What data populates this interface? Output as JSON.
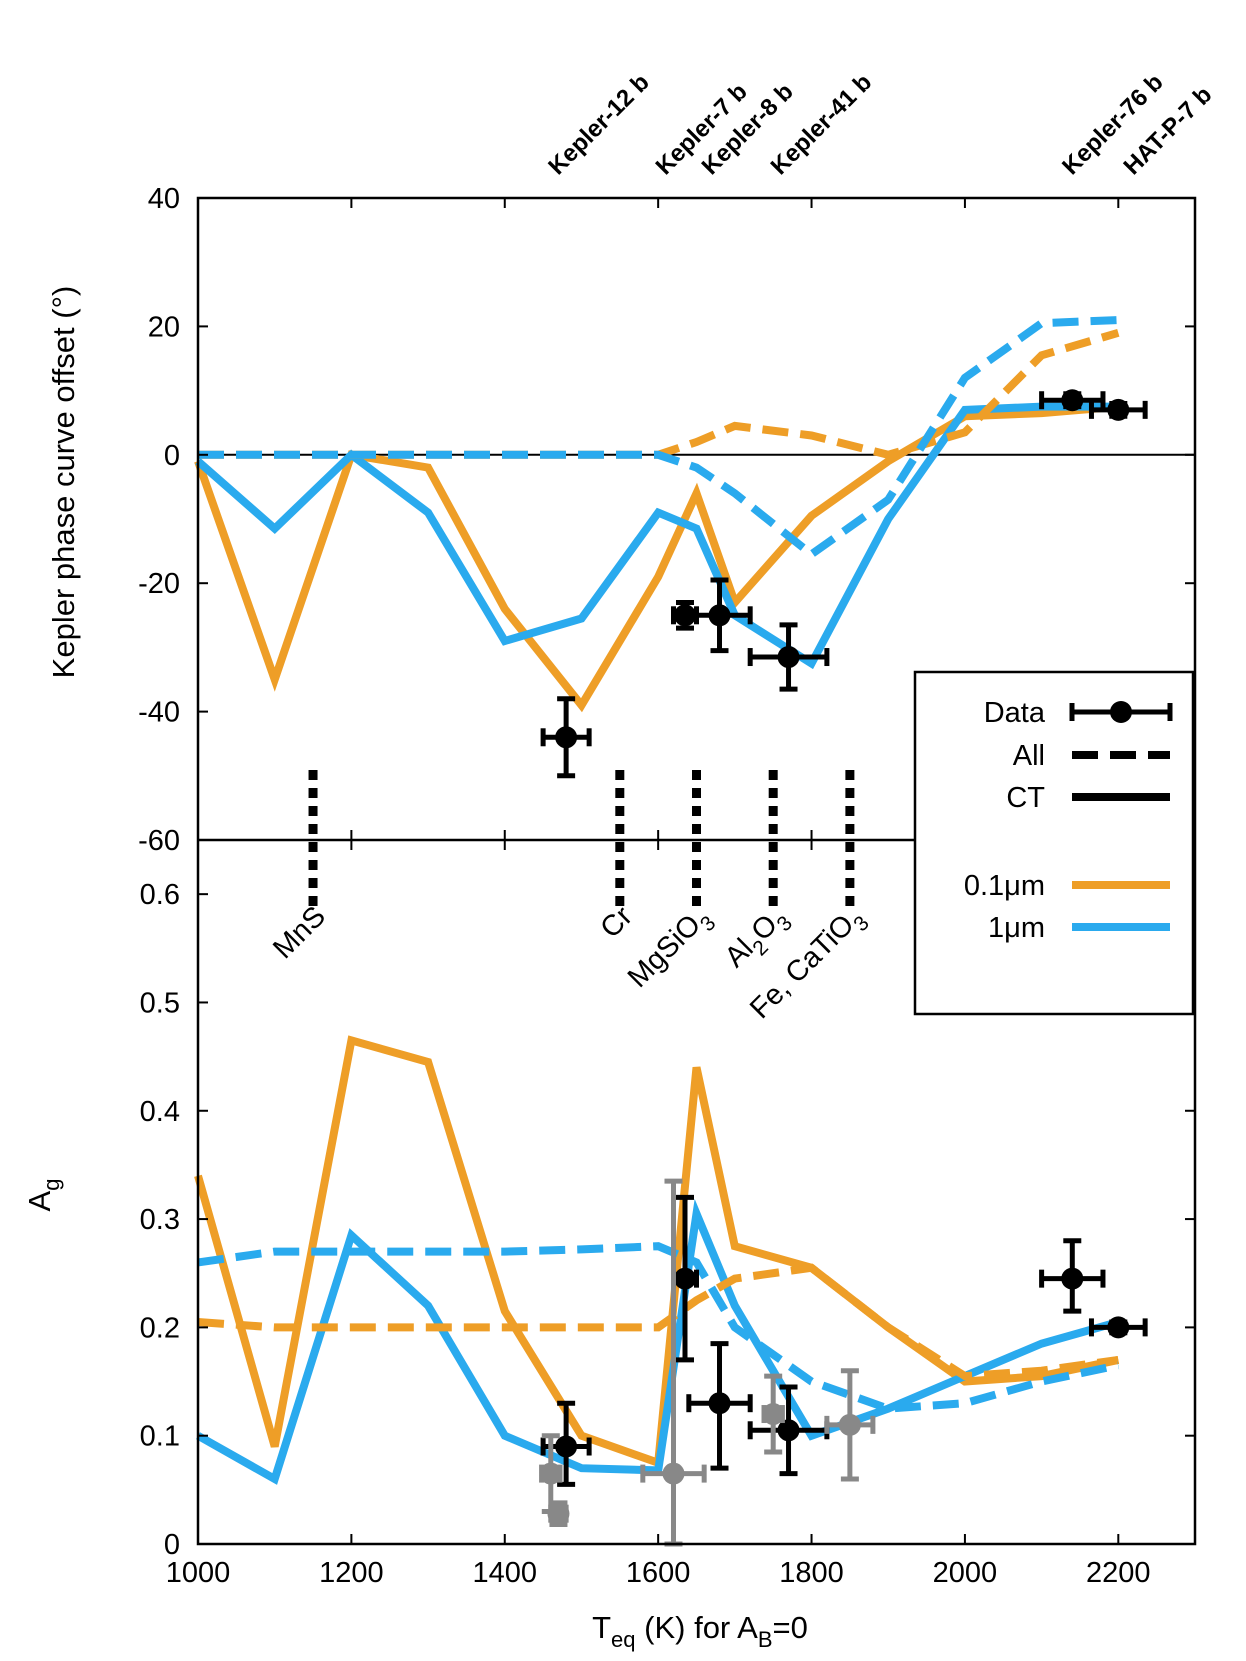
{
  "chart_data": [
    {
      "type": "line",
      "panel": "top",
      "ylabel": "Kepler phase curve offset (°)",
      "xlim": [
        1000,
        2300
      ],
      "ylim": [
        -60,
        40
      ],
      "grid": false,
      "zero_line": true,
      "yticks": [
        "40",
        "20",
        "0",
        "-20",
        "-40",
        "-60"
      ],
      "top_labels": [
        "Kepler-12 b",
        "Kepler-7 b",
        "Kepler-8 b",
        "Kepler-41 b",
        "Kepler-76 b",
        "HAT-P-7 b"
      ],
      "top_label_x": [
        1480,
        1620,
        1680,
        1770,
        2150,
        2230
      ],
      "condensation_x": [
        1150,
        1550,
        1650,
        1750,
        1850
      ],
      "series": [
        {
          "size": "0.1μm",
          "model": "CT",
          "color": "#EE9E27",
          "dash": false,
          "x": [
            1000,
            1100,
            1200,
            1300,
            1400,
            1500,
            1600,
            1650,
            1700,
            1800,
            1900,
            2000,
            2100,
            2200
          ],
          "y": [
            -1,
            -35,
            0,
            -2,
            -24,
            -39,
            -19,
            -6,
            -23,
            -9.5,
            -1,
            6,
            6.5,
            7.5
          ]
        },
        {
          "size": "1μm",
          "model": "CT",
          "color": "#2AAAEE",
          "dash": false,
          "x": [
            1000,
            1100,
            1200,
            1300,
            1400,
            1500,
            1600,
            1650,
            1700,
            1800,
            1900,
            2000,
            2100,
            2200
          ],
          "y": [
            -1,
            -11.5,
            0,
            -9,
            -29,
            -25.5,
            -9,
            -11.5,
            -25,
            -32.5,
            -10,
            7,
            7.5,
            7.5
          ]
        },
        {
          "size": "0.1μm",
          "model": "All",
          "color": "#EE9E27",
          "dash": true,
          "x": [
            1000,
            1100,
            1200,
            1300,
            1400,
            1500,
            1600,
            1650,
            1700,
            1800,
            1900,
            2000,
            2100,
            2200
          ],
          "y": [
            0,
            0,
            0,
            0,
            0,
            0,
            0,
            2,
            4.5,
            3,
            0,
            3.5,
            15.5,
            19
          ]
        },
        {
          "size": "1μm",
          "model": "All",
          "color": "#2AAAEE",
          "dash": true,
          "x": [
            1000,
            1100,
            1200,
            1300,
            1400,
            1500,
            1600,
            1650,
            1700,
            1800,
            1900,
            2000,
            2100,
            2200
          ],
          "y": [
            0,
            0,
            0,
            0,
            0,
            0,
            0,
            -2,
            -6,
            -15.5,
            -7,
            12,
            20.5,
            21
          ]
        }
      ],
      "data_points": [
        {
          "x": 1480,
          "y": -44,
          "xerr": 30,
          "yerr_lo": 6,
          "yerr_hi": 6,
          "color": "#000000"
        },
        {
          "x": 1635,
          "y": -25,
          "xerr": 15,
          "yerr_lo": 2,
          "yerr_hi": 2,
          "color": "#000000"
        },
        {
          "x": 1680,
          "y": -25,
          "xerr": 40,
          "yerr_lo": 5.5,
          "yerr_hi": 5.5,
          "color": "#000000"
        },
        {
          "x": 1770,
          "y": -31.5,
          "xerr": 50,
          "yerr_lo": 5,
          "yerr_hi": 5,
          "color": "#000000"
        },
        {
          "x": 2140,
          "y": 8.5,
          "xerr": 40,
          "yerr_lo": 1,
          "yerr_hi": 1,
          "color": "#000000"
        },
        {
          "x": 2200,
          "y": 7,
          "xerr": 35,
          "yerr_lo": 1,
          "yerr_hi": 1,
          "color": "#000000"
        }
      ]
    },
    {
      "type": "line",
      "panel": "bottom",
      "ylabel": "A",
      "ylabel_sub": "g",
      "xlabel_pre": "T",
      "xlabel_sub": "eq",
      "xlabel_mid": " (K) for A",
      "xlabel_sub2": "B",
      "xlabel_post": "=0",
      "xlim": [
        1000,
        2300
      ],
      "ylim": [
        0,
        0.65
      ],
      "grid": false,
      "xticks": [
        "1000",
        "1200",
        "1400",
        "1600",
        "1800",
        "2000",
        "2200"
      ],
      "yticks": [
        "0",
        "0.1",
        "0.2",
        "0.3",
        "0.4",
        "0.5",
        "0.6"
      ],
      "series": [
        {
          "size": "0.1μm",
          "model": "CT",
          "color": "#EE9E27",
          "dash": false,
          "x": [
            1000,
            1100,
            1200,
            1300,
            1400,
            1500,
            1600,
            1650,
            1700,
            1800,
            1900,
            2000,
            2100,
            2200
          ],
          "y": [
            0.34,
            0.09,
            0.465,
            0.445,
            0.215,
            0.1,
            0.075,
            0.44,
            0.275,
            0.255,
            0.2,
            0.15,
            0.155,
            0.17
          ]
        },
        {
          "size": "1μm",
          "model": "CT",
          "color": "#2AAAEE",
          "dash": false,
          "x": [
            1000,
            1100,
            1200,
            1300,
            1400,
            1500,
            1600,
            1650,
            1700,
            1800,
            1900,
            2000,
            2100,
            2200
          ],
          "y": [
            0.1,
            0.06,
            0.285,
            0.22,
            0.1,
            0.07,
            0.068,
            0.305,
            0.22,
            0.1,
            0.125,
            0.155,
            0.185,
            0.205
          ]
        },
        {
          "size": "0.1μm",
          "model": "All",
          "color": "#EE9E27",
          "dash": true,
          "x": [
            1000,
            1100,
            1200,
            1300,
            1400,
            1500,
            1600,
            1650,
            1700,
            1800,
            1900,
            2000,
            2100,
            2200
          ],
          "y": [
            0.205,
            0.2,
            0.2,
            0.2,
            0.2,
            0.2,
            0.2,
            0.225,
            0.245,
            0.255,
            0.2,
            0.155,
            0.16,
            0.17
          ]
        },
        {
          "size": "1μm",
          "model": "All",
          "color": "#2AAAEE",
          "dash": true,
          "x": [
            1000,
            1100,
            1200,
            1300,
            1400,
            1500,
            1600,
            1650,
            1700,
            1800,
            1900,
            2000,
            2100,
            2200
          ],
          "y": [
            0.26,
            0.27,
            0.27,
            0.27,
            0.27,
            0.272,
            0.275,
            0.26,
            0.2,
            0.15,
            0.125,
            0.13,
            0.15,
            0.165
          ]
        }
      ],
      "data_points": [
        {
          "x": 1480,
          "y": 0.09,
          "xerr": 30,
          "yerr_lo": 0.035,
          "yerr_hi": 0.04,
          "color": "#000000"
        },
        {
          "x": 1635,
          "y": 0.245,
          "xerr": 15,
          "yerr_lo": 0.075,
          "yerr_hi": 0.075,
          "color": "#000000"
        },
        {
          "x": 1680,
          "y": 0.13,
          "xerr": 40,
          "yerr_lo": 0.06,
          "yerr_hi": 0.055,
          "color": "#000000"
        },
        {
          "x": 1770,
          "y": 0.105,
          "xerr": 50,
          "yerr_lo": 0.04,
          "yerr_hi": 0.04,
          "color": "#000000"
        },
        {
          "x": 2140,
          "y": 0.245,
          "xerr": 40,
          "yerr_lo": 0.03,
          "yerr_hi": 0.035,
          "color": "#000000"
        },
        {
          "x": 2200,
          "y": 0.2,
          "xerr": 35,
          "yerr_lo": 0.005,
          "yerr_hi": 0.005,
          "color": "#000000"
        },
        {
          "x": 1460,
          "y": 0.065,
          "xerr": 12,
          "yerr_lo": 0.035,
          "yerr_hi": 0.035,
          "color": "#888888"
        },
        {
          "x": 1470,
          "y": 0.028,
          "xerr": 10,
          "yerr_lo": 0.01,
          "yerr_hi": 0.01,
          "color": "#888888"
        },
        {
          "x": 1620,
          "y": 0.065,
          "xerr": 40,
          "yerr_lo": 0.065,
          "yerr_hi": 0.27,
          "color": "#888888"
        },
        {
          "x": 1750,
          "y": 0.12,
          "xerr": 12,
          "yerr_lo": 0.035,
          "yerr_hi": 0.035,
          "color": "#888888"
        },
        {
          "x": 1850,
          "y": 0.11,
          "xerr": 30,
          "yerr_lo": 0.05,
          "yerr_hi": 0.05,
          "color": "#888888"
        }
      ]
    }
  ],
  "species_labels": [
    {
      "name": "MnS",
      "x": 1150
    },
    {
      "name": "Cr",
      "x": 1550
    },
    {
      "name": "MgSiO",
      "sub": "3",
      "x": 1650
    },
    {
      "name": "Al",
      "sub": "2",
      "mid": "O",
      "sub2": "3",
      "x": 1750
    },
    {
      "name": "Fe, CaTiO",
      "sub": "3",
      "x": 1850
    }
  ],
  "legend": {
    "position": "right",
    "entries": [
      {
        "label": "Data",
        "kind": "data"
      },
      {
        "label": "All",
        "kind": "dashed"
      },
      {
        "label": "CT",
        "kind": "solid"
      },
      {
        "label": "0.1μm",
        "kind": "color",
        "color": "#EE9E27"
      },
      {
        "label": "1μm",
        "kind": "color",
        "color": "#2AAAEE"
      }
    ]
  }
}
